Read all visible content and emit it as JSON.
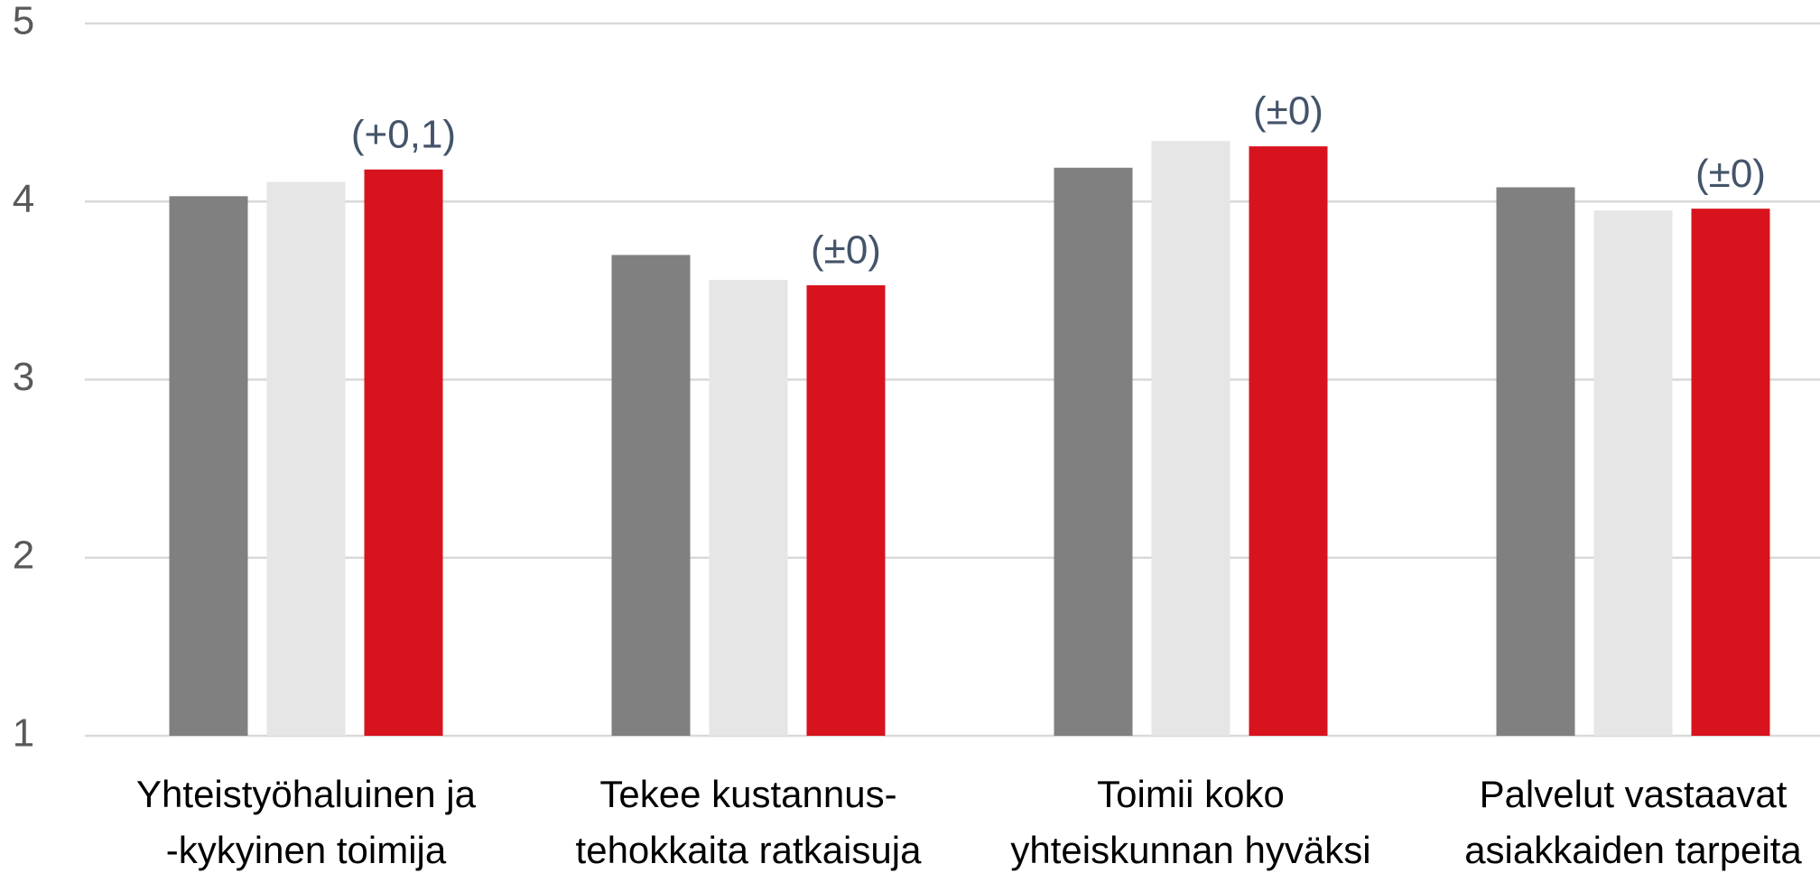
{
  "chart_data": {
    "type": "bar",
    "categories": [
      [
        "Yhteistyöhaluinen ja",
        "-kykyinen toimija"
      ],
      [
        "Tekee kustannus-",
        "tehokkaita ratkaisuja"
      ],
      [
        "Toimii koko",
        "yhteiskunnan hyväksi"
      ],
      [
        "Palvelut vastaavat",
        "asiakkaiden tarpeita"
      ]
    ],
    "series": [
      {
        "color": "#808080",
        "values": [
          4.03,
          3.7,
          4.19,
          4.08
        ]
      },
      {
        "color": "#e6e6e6",
        "values": [
          4.11,
          3.56,
          4.34,
          3.95
        ]
      },
      {
        "color": "#d7141e",
        "values": [
          4.18,
          3.53,
          4.31,
          3.96
        ]
      }
    ],
    "annotations": [
      "(+0,1)",
      "(±0)",
      "(±0)",
      "(±0)"
    ],
    "ylim": [
      1,
      5
    ],
    "yticks": [
      1,
      2,
      3,
      4,
      5
    ],
    "grid": true,
    "legend": false
  }
}
